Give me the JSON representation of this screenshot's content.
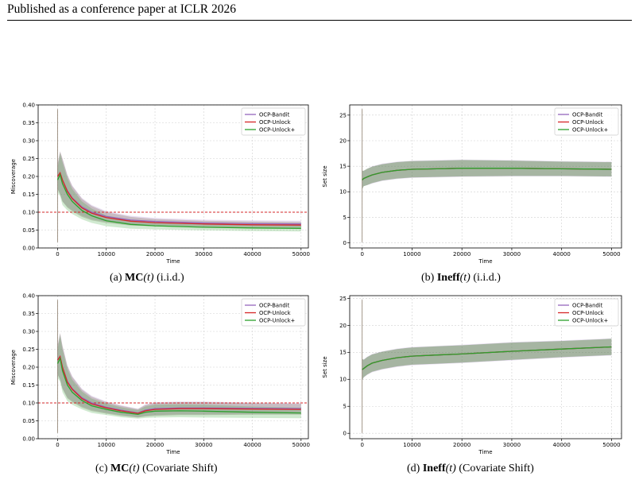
{
  "header": {
    "text": "Published as a conference paper at ICLR 2026"
  },
  "captions": [
    {
      "bold": "MC",
      "arg": "(t)",
      "rest": " (i.i.d.)",
      "prefix": "(a) "
    },
    {
      "bold": "Ineff",
      "arg": "(t)",
      "rest": " (i.i.d.)",
      "prefix": "(b) "
    },
    {
      "bold": "MC",
      "arg": "(t)",
      "rest": " (Covariate Shift)",
      "prefix": "(c) "
    },
    {
      "bold": "Ineff",
      "arg": "(t)",
      "rest": " (Covariate Shift)",
      "prefix": "(d) "
    }
  ],
  "colors": {
    "bandit": "#9467bd",
    "unlock": "#d62728",
    "unlockplus": "#2ca02c",
    "band": "#8c7e6e",
    "target": "#d62728"
  },
  "chart_data": [
    {
      "type": "line",
      "xlabel": "Time",
      "ylabel": "Miscoverage",
      "xlim": [
        -4000,
        51500
      ],
      "ylim": [
        0.0,
        0.4
      ],
      "xticks": [
        0,
        10000,
        20000,
        30000,
        40000,
        50000
      ],
      "yticks": [
        0.0,
        0.05,
        0.1,
        0.15,
        0.2,
        0.25,
        0.3,
        0.35,
        0.4
      ],
      "ytick_labels": [
        "0.00",
        "0.05",
        "0.10",
        "0.15",
        "0.20",
        "0.25",
        "0.30",
        "0.35",
        "0.40"
      ],
      "grid": true,
      "legend": "top-right",
      "reference_line": 0.1,
      "series": [
        {
          "name": "OCP-Bandit",
          "color_key": "bandit",
          "x": [
            0,
            500,
            1000,
            2000,
            3000,
            5000,
            7000,
            10000,
            15000,
            20000,
            30000,
            40000,
            50000
          ],
          "y": [
            0.2,
            0.21,
            0.19,
            0.16,
            0.14,
            0.115,
            0.1,
            0.088,
            0.078,
            0.074,
            0.07,
            0.068,
            0.067
          ],
          "band": [
            0.035,
            0.06,
            0.06,
            0.045,
            0.035,
            0.025,
            0.02,
            0.015,
            0.012,
            0.01,
            0.009,
            0.009,
            0.009
          ]
        },
        {
          "name": "OCP-Unlock",
          "color_key": "unlock",
          "x": [
            0,
            500,
            1000,
            2000,
            3000,
            5000,
            7000,
            10000,
            15000,
            20000,
            30000,
            40000,
            50000
          ],
          "y": [
            0.2,
            0.21,
            0.19,
            0.158,
            0.138,
            0.112,
            0.097,
            0.085,
            0.075,
            0.071,
            0.067,
            0.065,
            0.064
          ],
          "band": [
            0.035,
            0.06,
            0.06,
            0.045,
            0.035,
            0.025,
            0.02,
            0.015,
            0.012,
            0.01,
            0.009,
            0.009,
            0.009
          ]
        },
        {
          "name": "OCP-Unlock+",
          "color_key": "unlockplus",
          "x": [
            0,
            500,
            1000,
            2000,
            3000,
            5000,
            7000,
            10000,
            15000,
            20000,
            30000,
            40000,
            50000
          ],
          "y": [
            0.19,
            0.205,
            0.18,
            0.15,
            0.13,
            0.105,
            0.09,
            0.076,
            0.066,
            0.062,
            0.058,
            0.056,
            0.055
          ],
          "band": [
            0.035,
            0.06,
            0.06,
            0.045,
            0.035,
            0.025,
            0.02,
            0.015,
            0.012,
            0.01,
            0.009,
            0.009,
            0.009
          ]
        }
      ]
    },
    {
      "type": "line",
      "xlabel": "Time",
      "ylabel": "Set size",
      "xlim": [
        -2500,
        52000
      ],
      "ylim": [
        -1,
        27
      ],
      "xticks": [
        0,
        10000,
        20000,
        30000,
        40000,
        50000
      ],
      "yticks": [
        0,
        5,
        10,
        15,
        20,
        25
      ],
      "ytick_labels": [
        "0",
        "5",
        "10",
        "15",
        "20",
        "25"
      ],
      "grid": true,
      "legend": "top-right",
      "series": [
        {
          "name": "OCP-Bandit",
          "color_key": "bandit",
          "x": [
            0,
            300,
            1000,
            2000,
            4000,
            7000,
            10000,
            15000,
            20000,
            30000,
            40000,
            50000
          ],
          "y": [
            12.3,
            12.6,
            12.9,
            13.3,
            13.8,
            14.2,
            14.4,
            14.5,
            14.6,
            14.6,
            14.5,
            14.4
          ],
          "band": [
            1.8,
            1.5,
            1.6,
            1.7,
            1.7,
            1.7,
            1.7,
            1.7,
            1.7,
            1.6,
            1.5,
            1.5
          ]
        },
        {
          "name": "OCP-Unlock",
          "color_key": "unlock",
          "x": [
            0,
            300,
            1000,
            2000,
            4000,
            7000,
            10000,
            15000,
            20000,
            30000,
            40000,
            50000
          ],
          "y": [
            12.3,
            12.6,
            12.9,
            13.3,
            13.8,
            14.2,
            14.4,
            14.5,
            14.6,
            14.6,
            14.5,
            14.4
          ],
          "band": [
            1.8,
            1.5,
            1.6,
            1.6,
            1.6,
            1.6,
            1.6,
            1.6,
            1.6,
            1.5,
            1.4,
            1.4
          ]
        },
        {
          "name": "OCP-Unlock+",
          "color_key": "unlockplus",
          "x": [
            0,
            300,
            1000,
            2000,
            4000,
            7000,
            10000,
            15000,
            20000,
            30000,
            40000,
            50000
          ],
          "y": [
            12.3,
            12.6,
            12.9,
            13.3,
            13.8,
            14.2,
            14.4,
            14.5,
            14.6,
            14.6,
            14.5,
            14.4
          ],
          "band": [
            1.8,
            1.5,
            1.6,
            1.6,
            1.6,
            1.6,
            1.6,
            1.6,
            1.6,
            1.5,
            1.4,
            1.4
          ]
        }
      ]
    },
    {
      "type": "line",
      "xlabel": "Time",
      "ylabel": "Miscoverage",
      "xlim": [
        -4000,
        51500
      ],
      "ylim": [
        0.0,
        0.4
      ],
      "xticks": [
        0,
        10000,
        20000,
        30000,
        40000,
        50000
      ],
      "yticks": [
        0.0,
        0.05,
        0.1,
        0.15,
        0.2,
        0.25,
        0.3,
        0.35,
        0.4
      ],
      "ytick_labels": [
        "0.00",
        "0.05",
        "0.10",
        "0.15",
        "0.20",
        "0.25",
        "0.30",
        "0.35",
        "0.40"
      ],
      "grid": true,
      "legend": "top-right",
      "reference_line": 0.1,
      "series": [
        {
          "name": "OCP-Bandit",
          "color_key": "bandit",
          "x": [
            0,
            500,
            1000,
            2000,
            3000,
            5000,
            7000,
            10000,
            13000,
            16500,
            18000,
            20000,
            25000,
            30000,
            40000,
            50000
          ],
          "y": [
            0.22,
            0.23,
            0.2,
            0.16,
            0.14,
            0.115,
            0.1,
            0.088,
            0.08,
            0.072,
            0.08,
            0.084,
            0.086,
            0.086,
            0.085,
            0.084
          ],
          "band": [
            0.04,
            0.065,
            0.06,
            0.045,
            0.035,
            0.025,
            0.02,
            0.016,
            0.014,
            0.012,
            0.016,
            0.018,
            0.018,
            0.018,
            0.016,
            0.015
          ]
        },
        {
          "name": "OCP-Unlock",
          "color_key": "unlock",
          "x": [
            0,
            500,
            1000,
            2000,
            3000,
            5000,
            7000,
            10000,
            13000,
            16500,
            18000,
            20000,
            25000,
            30000,
            40000,
            50000
          ],
          "y": [
            0.22,
            0.23,
            0.2,
            0.158,
            0.138,
            0.112,
            0.097,
            0.086,
            0.078,
            0.071,
            0.078,
            0.082,
            0.084,
            0.084,
            0.083,
            0.082
          ],
          "band": [
            0.04,
            0.065,
            0.06,
            0.045,
            0.035,
            0.025,
            0.02,
            0.016,
            0.014,
            0.012,
            0.016,
            0.018,
            0.018,
            0.018,
            0.016,
            0.015
          ]
        },
        {
          "name": "OCP-Unlock+",
          "color_key": "unlockplus",
          "x": [
            0,
            500,
            1000,
            2000,
            3000,
            5000,
            7000,
            10000,
            13000,
            16500,
            18000,
            20000,
            25000,
            30000,
            40000,
            50000
          ],
          "y": [
            0.21,
            0.225,
            0.19,
            0.15,
            0.13,
            0.107,
            0.092,
            0.082,
            0.074,
            0.068,
            0.074,
            0.077,
            0.078,
            0.077,
            0.074,
            0.072
          ],
          "band": [
            0.04,
            0.065,
            0.06,
            0.045,
            0.035,
            0.025,
            0.02,
            0.016,
            0.014,
            0.012,
            0.016,
            0.018,
            0.018,
            0.018,
            0.016,
            0.015
          ]
        }
      ]
    },
    {
      "type": "line",
      "xlabel": "Time",
      "ylabel": "Set size",
      "xlim": [
        -2500,
        52000
      ],
      "ylim": [
        -1,
        25.5
      ],
      "xticks": [
        0,
        10000,
        20000,
        30000,
        40000,
        50000
      ],
      "yticks": [
        0,
        5,
        10,
        15,
        20,
        25
      ],
      "ytick_labels": [
        "0",
        "5",
        "10",
        "15",
        "20",
        "25"
      ],
      "grid": true,
      "legend": "top-right",
      "series": [
        {
          "name": "OCP-Bandit",
          "color_key": "bandit",
          "x": [
            0,
            300,
            1000,
            2000,
            4000,
            7000,
            10000,
            15000,
            20000,
            30000,
            40000,
            50000
          ],
          "y": [
            11.8,
            12.0,
            12.5,
            13.0,
            13.5,
            14.0,
            14.3,
            14.5,
            14.7,
            15.2,
            15.6,
            16.0
          ],
          "band": [
            2.0,
            1.7,
            1.7,
            1.7,
            1.7,
            1.7,
            1.7,
            1.7,
            1.7,
            1.7,
            1.6,
            1.6
          ]
        },
        {
          "name": "OCP-Unlock",
          "color_key": "unlock",
          "x": [
            0,
            300,
            1000,
            2000,
            4000,
            7000,
            10000,
            15000,
            20000,
            30000,
            40000,
            50000
          ],
          "y": [
            11.8,
            12.0,
            12.5,
            13.0,
            13.5,
            14.0,
            14.3,
            14.5,
            14.7,
            15.2,
            15.6,
            16.0
          ],
          "band": [
            2.0,
            1.6,
            1.6,
            1.6,
            1.6,
            1.6,
            1.6,
            1.6,
            1.6,
            1.6,
            1.5,
            1.5
          ]
        },
        {
          "name": "OCP-Unlock+",
          "color_key": "unlockplus",
          "x": [
            0,
            300,
            1000,
            2000,
            4000,
            7000,
            10000,
            15000,
            20000,
            30000,
            40000,
            50000
          ],
          "y": [
            11.8,
            12.0,
            12.5,
            13.0,
            13.5,
            14.0,
            14.3,
            14.5,
            14.7,
            15.2,
            15.6,
            16.0
          ],
          "band": [
            2.0,
            1.6,
            1.6,
            1.6,
            1.6,
            1.6,
            1.6,
            1.6,
            1.6,
            1.6,
            1.5,
            1.5
          ]
        }
      ]
    }
  ]
}
